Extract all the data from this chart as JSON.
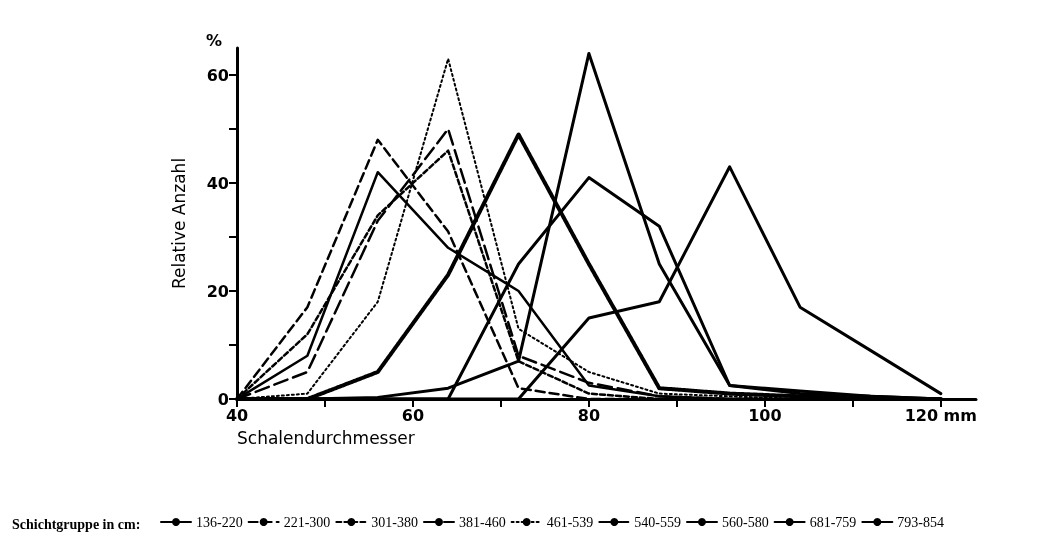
{
  "chart_data": {
    "type": "line",
    "xlabel": "Schalendurchmesser",
    "ylabel": "Relative Anzahl",
    "legend_title": "Schichtgruppe in cm:",
    "annotations": [
      "%"
    ],
    "x": [
      40,
      48,
      56,
      64,
      72,
      80,
      88,
      96,
      104,
      112,
      120
    ],
    "xlim": [
      40,
      124
    ],
    "xticks": [
      40,
      {
        "value": 50,
        "label": null
      },
      60,
      {
        "value": 70,
        "label": null
      },
      80,
      {
        "value": 90,
        "label": null
      },
      100,
      {
        "value": 110,
        "label": null
      },
      {
        "value": 120,
        "label": "120 mm"
      }
    ],
    "ylim": [
      0,
      65
    ],
    "yticks": [
      0,
      {
        "value": 10,
        "label": null
      },
      20,
      {
        "value": 30,
        "label": null
      },
      40,
      {
        "value": 50,
        "label": null
      },
      60
    ],
    "grid": false,
    "legend": "bottom",
    "marker": "none",
    "series": [
      {
        "name": "136-220",
        "color": "#000000",
        "line_style": "solid",
        "values": [
          0,
          8,
          42,
          28,
          20,
          2.5,
          0.5,
          0,
          0,
          0,
          0
        ]
      },
      {
        "name": "221-300",
        "color": "#000000",
        "line_style": "dashed",
        "values": [
          0,
          17,
          48,
          31,
          2,
          0,
          0,
          0,
          0,
          0,
          0
        ]
      },
      {
        "name": "301-380",
        "color": "#000000",
        "line_style": "dashed",
        "values": [
          0,
          12,
          34,
          46,
          7,
          1,
          0,
          0,
          0,
          0,
          0
        ]
      },
      {
        "name": "381-460",
        "color": "#000000",
        "line_style": "dashed",
        "values": [
          0,
          5,
          33,
          50,
          8,
          3,
          0.5,
          0,
          0,
          0,
          0
        ]
      },
      {
        "name": "461-539",
        "color": "#000000",
        "line_style": "dotted",
        "values": [
          0,
          1,
          18,
          63,
          13,
          5,
          1,
          0.5,
          0,
          0,
          0
        ]
      },
      {
        "name": "540-559",
        "color": "#000000",
        "line_style": "dotted",
        "values": [
          0,
          0,
          5,
          23,
          49,
          25,
          2,
          1,
          0.5,
          0,
          0
        ]
      },
      {
        "name": "560-580",
        "color": "#000000",
        "line_style": "solid",
        "values": [
          0,
          0,
          0.3,
          2,
          7,
          64,
          25,
          2.5,
          1,
          0.5,
          0
        ]
      },
      {
        "name": "681-759",
        "color": "#000000",
        "line_style": "solid",
        "values": [
          0,
          0,
          0,
          0,
          25,
          41,
          32,
          2.5,
          1.5,
          0.5,
          0
        ]
      },
      {
        "name": "793-854",
        "color": "#000000",
        "line_style": "solid",
        "values": [
          0,
          0,
          0,
          0,
          0,
          15,
          18,
          43,
          17,
          9,
          1
        ]
      }
    ]
  }
}
